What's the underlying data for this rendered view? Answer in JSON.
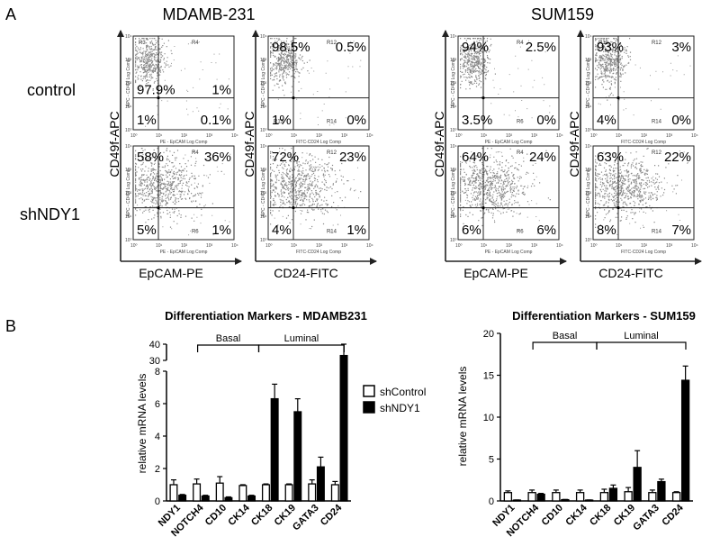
{
  "panel_labels": {
    "a": "A",
    "b": "B"
  },
  "flow": {
    "cell_lines": [
      "MDAMB-231",
      "SUM159"
    ],
    "row_labels": [
      "control",
      "shNDY1"
    ],
    "y_axis_label": "CD49f-APC",
    "x_axis_labels": [
      "EpCAM-PE",
      "CD24-FITC"
    ],
    "small_y_label": "APC - CD49f Log Comp",
    "small_x_labels": [
      "PE - EpCAM Log Comp",
      "FITC-CD24 Log Comp"
    ],
    "decades": [
      "10⁰",
      "10¹",
      "10²",
      "10³",
      "10⁴"
    ],
    "plots": [
      {
        "row": 0,
        "col": 0,
        "gates": [
          "R3",
          "R4",
          "",
          ""
        ],
        "quadrants": [
          "97.9%",
          "1%",
          "1%",
          "0.1%"
        ]
      },
      {
        "row": 0,
        "col": 1,
        "gates": [
          "",
          "R12",
          "R13",
          "R14"
        ],
        "quadrants": [
          "98.5%",
          "0.5%",
          "1%",
          "0%"
        ]
      },
      {
        "row": 0,
        "col": 2,
        "gates": [
          "",
          "R4",
          "",
          "R6"
        ],
        "quadrants": [
          "94%",
          "2.5%",
          "3.5%",
          "0%"
        ]
      },
      {
        "row": 0,
        "col": 3,
        "gates": [
          "R11",
          "R12",
          "",
          "R14"
        ],
        "quadrants": [
          "93%",
          "3%",
          "4%",
          "0%"
        ]
      },
      {
        "row": 1,
        "col": 0,
        "gates": [
          "",
          "R4",
          "",
          "R6"
        ],
        "quadrants": [
          "58%",
          "36%",
          "5%",
          "1%"
        ]
      },
      {
        "row": 1,
        "col": 1,
        "gates": [
          "",
          "R12",
          "",
          "R14"
        ],
        "quadrants": [
          "72%",
          "23%",
          "4%",
          "1%"
        ]
      },
      {
        "row": 1,
        "col": 2,
        "gates": [
          "",
          "R4",
          "",
          "R6"
        ],
        "quadrants": [
          "64%",
          "24%",
          "6%",
          "6%"
        ]
      },
      {
        "row": 1,
        "col": 3,
        "gates": [
          "",
          "R12",
          "",
          "R14"
        ],
        "quadrants": [
          "63%",
          "22%",
          "8%",
          "7%"
        ]
      }
    ]
  },
  "legend": {
    "items": [
      "shControl",
      "shNDY1"
    ]
  },
  "chart_data": [
    {
      "type": "bar",
      "title": "Differentiation Markers - MDAMB231",
      "ylabel": "relative mRNA levels",
      "categories": [
        "NDY1",
        "NOTCH4",
        "CD10",
        "CK14",
        "CK18",
        "CK19",
        "GATA3",
        "CD24"
      ],
      "groups": [
        {
          "label": "Basal",
          "from": 1,
          "to": 3
        },
        {
          "label": "Luminal",
          "from": 4,
          "to": 7
        }
      ],
      "series": [
        {
          "name": "shControl",
          "values": [
            1.0,
            1.05,
            1.1,
            0.95,
            1.0,
            1.0,
            1.05,
            1.0
          ],
          "errors": [
            0.3,
            0.3,
            0.4,
            0.05,
            0.05,
            0.05,
            0.25,
            0.2
          ]
        },
        {
          "name": "shNDY1",
          "values": [
            0.35,
            0.3,
            0.2,
            0.3,
            6.3,
            5.5,
            2.1,
            33
          ],
          "errors": [
            0.05,
            0.05,
            0.05,
            0.05,
            0.9,
            0.8,
            0.6,
            7
          ]
        }
      ],
      "ylim": [
        0,
        40
      ],
      "broken_axis": {
        "lower": [
          0,
          8
        ],
        "upper": [
          30,
          40
        ]
      },
      "yticks_lower": [
        0,
        2,
        4,
        6,
        8
      ],
      "yticks_upper": [
        30,
        40
      ]
    },
    {
      "type": "bar",
      "title": "Differentiation Markers - SUM159",
      "ylabel": "relative mRNA levels",
      "categories": [
        "NDY1",
        "NOTCH4",
        "CD10",
        "CK14",
        "CK18",
        "CK19",
        "GATA3",
        "CD24"
      ],
      "groups": [
        {
          "label": "Basal",
          "from": 1,
          "to": 3
        },
        {
          "label": "Luminal",
          "from": 4,
          "to": 7
        }
      ],
      "series": [
        {
          "name": "shControl",
          "values": [
            1.0,
            1.0,
            1.0,
            1.0,
            1.0,
            1.1,
            1.0,
            1.0
          ],
          "errors": [
            0.2,
            0.3,
            0.3,
            0.3,
            0.4,
            0.5,
            0.3,
            0.1
          ]
        },
        {
          "name": "shNDY1",
          "values": [
            0.1,
            0.8,
            0.15,
            0.1,
            1.5,
            4.0,
            2.3,
            14.4
          ],
          "errors": [
            0.02,
            0.1,
            0.03,
            0.02,
            0.4,
            2.0,
            0.3,
            1.7
          ]
        }
      ],
      "ylim": [
        0,
        20
      ],
      "yticks": [
        0,
        5,
        10,
        15,
        20
      ]
    }
  ]
}
